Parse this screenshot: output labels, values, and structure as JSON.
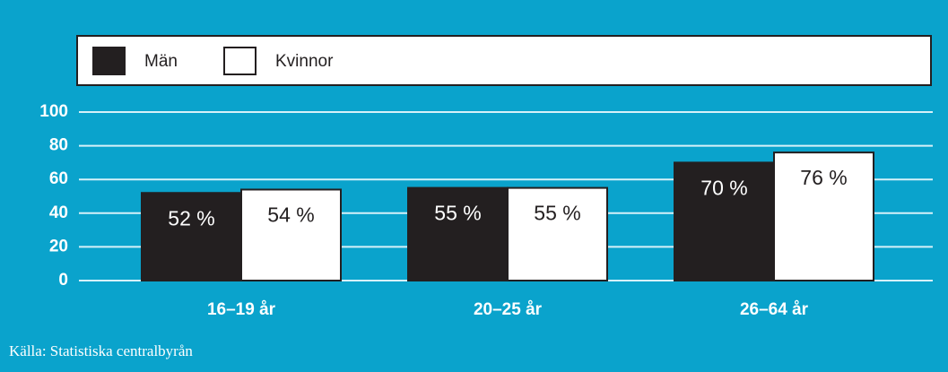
{
  "chart_data": {
    "type": "bar",
    "categories": [
      "16–19 år",
      "20–25 år",
      "26–64 år"
    ],
    "series": [
      {
        "name": "Män",
        "color": "#231f20",
        "values": [
          52,
          55,
          70
        ],
        "value_labels": [
          "52 %",
          "55 %",
          "70 %"
        ]
      },
      {
        "name": "Kvinnor",
        "color": "#ffffff",
        "values": [
          54,
          55,
          76
        ],
        "value_labels": [
          "54 %",
          "55 %",
          "76 %"
        ]
      }
    ],
    "ylim": [
      0,
      100
    ],
    "yticks": [
      0,
      20,
      40,
      60,
      80,
      100
    ],
    "grid": true,
    "legend": "top",
    "source": "Källa: Statistiska centralbyrån"
  }
}
